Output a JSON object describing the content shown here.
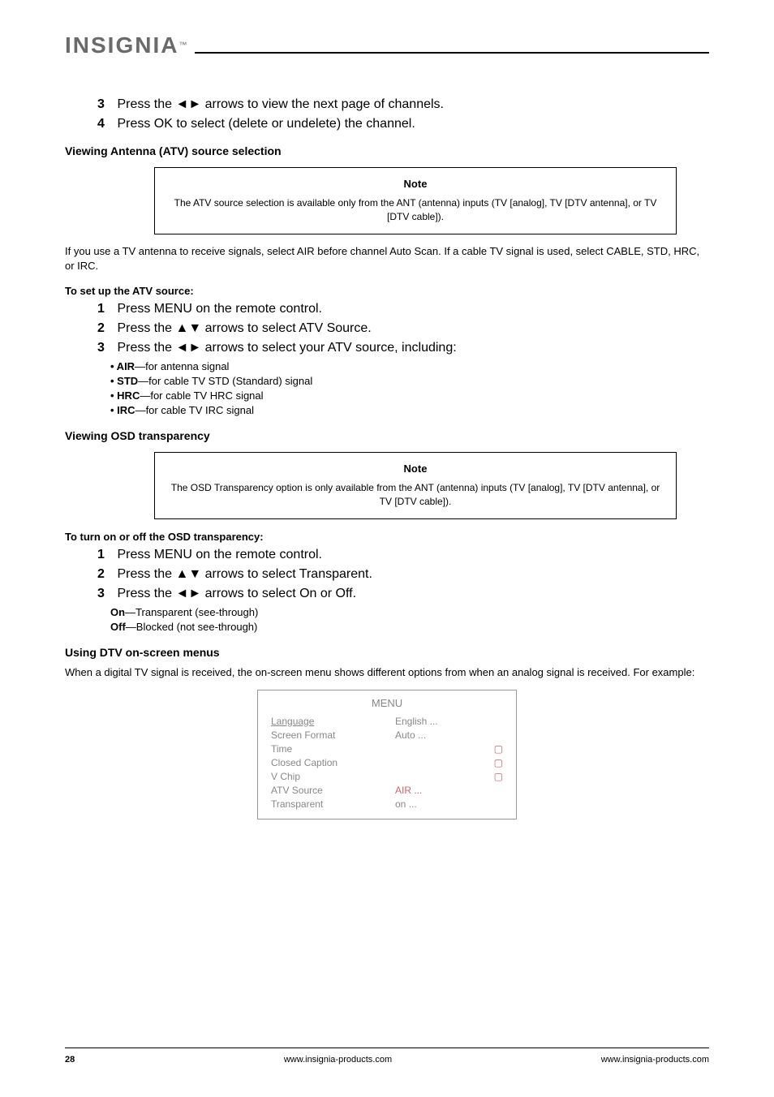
{
  "logo": {
    "brand": "INSIGNIA",
    "trademark": "™"
  },
  "content": {
    "line1a": "3",
    "line1b": " Press the ◄► arrows to view the next page of channels.",
    "line2a": "4",
    "line2b": " Press OK to select (delete or undelete) the channel.",
    "section_atv_title": "Viewing Antenna (ATV) source selection",
    "section_atv_note_title": "Note",
    "section_atv_note_text": "The ATV source selection is available only from the ANT (antenna) inputs (TV [analog], TV [DTV antenna], or TV [DTV cable]).",
    "atv_intro": "If you use a TV antenna to receive signals, select AIR before channel Auto Scan. If a cable TV signal is used, select CABLE, STD, HRC, or IRC.",
    "atv_sub_title": "To set up the ATV source:",
    "atv_step1a": "1",
    "atv_step1b": " Press MENU on the remote control.",
    "atv_step2a": "2",
    "atv_step2b": " Press the ▲▼ arrows to select ATV Source.",
    "atv_step3a": "3",
    "atv_step3b": " Press the ◄► arrows to select your ATV source, including:",
    "atv_opt1_label": "• AIR",
    "atv_opt1_desc": "—for antenna signal",
    "atv_opt2_label": "• STD",
    "atv_opt2_desc": "—for cable TV STD (Standard) signal",
    "atv_opt3_label": "• HRC",
    "atv_opt3_desc": "—for cable TV HRC signal",
    "atv_opt4_label": "• IRC",
    "atv_opt4_desc": "—for cable TV IRC signal",
    "section_trans_title": "Viewing OSD transparency",
    "section_trans_note_title": "Note",
    "section_trans_note_text": "The OSD Transparency option is only available from the ANT (antenna) inputs (TV [analog], TV [DTV antenna], or TV [DTV cable]).",
    "trans_sub_title": "To turn on or off the OSD transparency:",
    "trans_step1a": "1",
    "trans_step1b": " Press MENU on the remote control.",
    "trans_step2a": "2",
    "trans_step2b": " Press the ▲▼ arrows to select Transparent.",
    "trans_step3a": "3",
    "trans_step3b": " Press the ◄► arrows to select On or Off.",
    "trans_on_label": "On",
    "trans_on_desc": "—Transparent (see-through)",
    "trans_off_label": "Off",
    "trans_off_desc": "—Blocked (not see-through)",
    "section_menus_title": "Using DTV on-screen menus",
    "menus_intro": "When a digital TV signal is received, the on-screen menu shows different options from when an analog signal is received. For example:",
    "menu_img": {
      "title": "MENU",
      "rows": [
        {
          "label": "Language",
          "value": "English",
          "dots": "...",
          "icon": ""
        },
        {
          "label": "Screen Format",
          "value": "Auto",
          "dots": "...",
          "icon": ""
        },
        {
          "label": "Time",
          "value": "",
          "dots": "",
          "icon": "▢"
        },
        {
          "label": "Closed Caption",
          "value": "",
          "dots": "",
          "icon": "▢"
        },
        {
          "label": "V Chip",
          "value": "",
          "dots": "",
          "icon": "▢"
        },
        {
          "label": "ATV Source",
          "value": "AIR",
          "dots": "...",
          "icon": ""
        },
        {
          "label": "Transparent",
          "value": "on",
          "dots": "...",
          "icon": ""
        }
      ]
    }
  },
  "footer": {
    "page": "28",
    "left_url": "www.insignia-products.com",
    "right_url": "www.insignia-products.com"
  },
  "colors": {
    "black": "#000000",
    "gray": "#6a6a6a",
    "lightgray": "#888888",
    "red": "#cc6666"
  }
}
